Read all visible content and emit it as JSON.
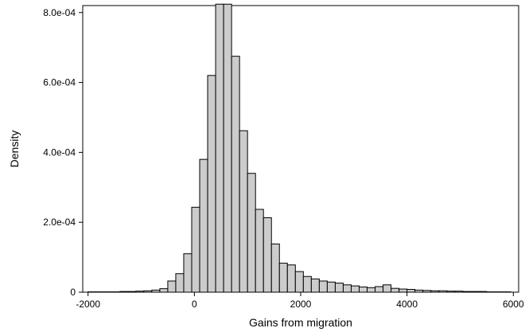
{
  "chart_data": {
    "type": "bar",
    "title": "",
    "xlabel": "Gains from migration",
    "ylabel": "Density",
    "xlim": [
      -2100,
      6100
    ],
    "ylim": [
      0,
      0.00082
    ],
    "x_ticks": [
      -2000,
      0,
      2000,
      4000,
      6000
    ],
    "x_tick_labels": [
      "-2000",
      "0",
      "2000",
      "4000",
      "6000"
    ],
    "y_ticks": [
      0,
      0.0002,
      0.0004,
      0.0006,
      0.0008
    ],
    "y_tick_labels": [
      "0",
      "2.0e-04",
      "4.0e-04",
      "6.0e-04",
      "8.0e-04"
    ],
    "grid": false,
    "bar_fill": "#cccccc",
    "bar_stroke": "#000000",
    "bin_width": 150,
    "bin_starts": [
      -2000,
      -1850,
      -1700,
      -1550,
      -1400,
      -1250,
      -1100,
      -950,
      -800,
      -650,
      -500,
      -350,
      -200,
      -50,
      100,
      250,
      400,
      550,
      700,
      850,
      1000,
      1150,
      1300,
      1450,
      1600,
      1750,
      1900,
      2050,
      2200,
      2350,
      2500,
      2650,
      2800,
      2950,
      3100,
      3250,
      3400,
      3550,
      3700,
      3850,
      4000,
      4150,
      4300,
      4450,
      4600,
      4750,
      4900,
      5050,
      5200,
      5350,
      5500,
      5650,
      5800
    ],
    "values": [
      1e-06,
      1e-06,
      1e-06,
      1e-06,
      2e-06,
      2e-06,
      3e-06,
      4e-06,
      6e-06,
      1e-05,
      3.2e-05,
      5.3e-05,
      0.00011,
      0.000243,
      0.00038,
      0.00062,
      0.000824,
      0.000824,
      0.000675,
      0.000462,
      0.00034,
      0.000237,
      0.000213,
      0.000138,
      8.3e-05,
      7.8e-05,
      5.9e-05,
      4.5e-05,
      3.8e-05,
      3.2e-05,
      2.9e-05,
      2.6e-05,
      2.1e-05,
      1.8e-05,
      1.5e-05,
      1.3e-05,
      1.6e-05,
      2.1e-05,
      1.1e-05,
      9e-06,
      8e-06,
      6e-06,
      5e-06,
      4e-06,
      4e-06,
      3e-06,
      3e-06,
      2e-06,
      2e-06,
      2e-06,
      1e-06,
      1e-06,
      1e-06
    ]
  }
}
